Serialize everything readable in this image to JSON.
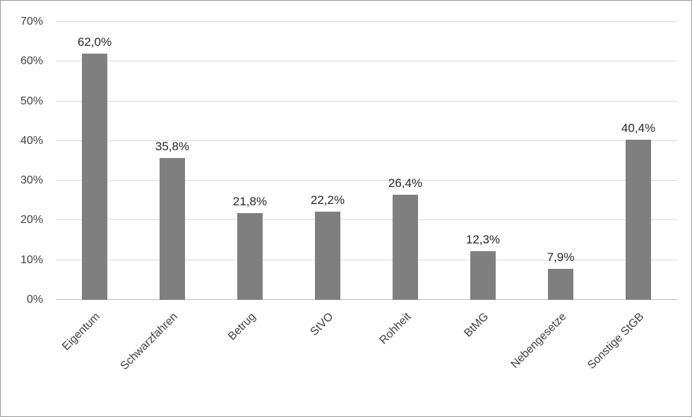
{
  "chart_data": {
    "type": "bar",
    "title": "",
    "xlabel": "",
    "ylabel": "",
    "categories": [
      "Eigentum",
      "Schwarzfahren",
      "Betrug",
      "StVO",
      "Rohheit",
      "BtMG",
      "Nebengesetze",
      "Sonstige StGB"
    ],
    "values": [
      62.0,
      35.8,
      21.8,
      22.2,
      26.4,
      12.3,
      7.9,
      40.4
    ],
    "value_labels": [
      "62,0%",
      "35,8%",
      "21,8%",
      "22,2%",
      "26,4%",
      "12,3%",
      "7,9%",
      "40,4%"
    ],
    "ylim": [
      0,
      70
    ],
    "yticks": [
      0,
      10,
      20,
      30,
      40,
      50,
      60,
      70
    ],
    "ytick_labels": [
      "0%",
      "10%",
      "20%",
      "30%",
      "40%",
      "50%",
      "60%",
      "70%"
    ],
    "grid": true,
    "legend_position": "none",
    "colors": {
      "bar": "#7f7f7f",
      "gridline": "#d9d9d9",
      "axis_line": "#bfbfbf",
      "text": "#3f3f3f",
      "value_label_text": "#262626",
      "chart_border": "#9a9a9a",
      "background": "#ffffff"
    }
  }
}
